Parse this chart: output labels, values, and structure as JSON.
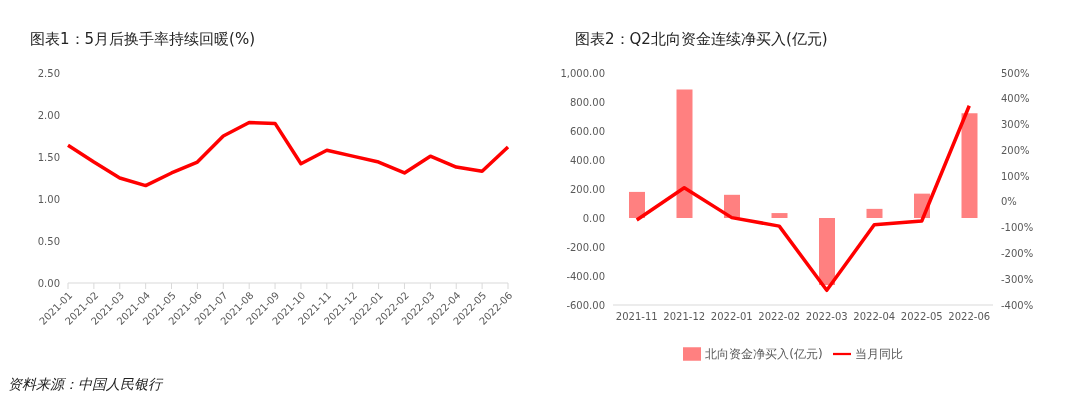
{
  "chart_data": [
    {
      "type": "line",
      "title": "图表1：5月后换手率持续回暖(%)",
      "categories": [
        "2021-01",
        "2021-02",
        "2021-03",
        "2021-04",
        "2021-05",
        "2021-06",
        "2021-07",
        "2021-08",
        "2021-09",
        "2021-10",
        "2021-11",
        "2021-12",
        "2022-01",
        "2022-02",
        "2022-03",
        "2022-04",
        "2022-05",
        "2022-06"
      ],
      "series": [
        {
          "color": "#ff0000",
          "values": [
            1.64,
            1.44,
            1.25,
            1.16,
            1.31,
            1.44,
            1.75,
            1.91,
            1.9,
            1.42,
            1.58,
            1.51,
            1.44,
            1.31,
            1.51,
            1.38,
            1.33,
            1.62
          ]
        }
      ],
      "ylim": [
        0,
        2.5
      ],
      "yticks": [
        {
          "value": 0,
          "label": "0.00"
        },
        {
          "value": 0.5,
          "label": "0.50"
        },
        {
          "value": 1,
          "label": "1.00"
        },
        {
          "value": 1.5,
          "label": "1.50"
        },
        {
          "value": 2,
          "label": "2.00"
        },
        {
          "value": 2.5,
          "label": "2.50"
        }
      ],
      "grid": false,
      "legend": false,
      "marker": "none",
      "line_style": "solid",
      "annotations": [
        "资料来源：中国人民银行"
      ]
    },
    {
      "type": "bar",
      "title": "图表2：Q2北向资金连续净买入(亿元)",
      "categories": [
        "2021-11",
        "2021-12",
        "2022-01",
        "2022-02",
        "2022-03",
        "2022-04",
        "2022-05",
        "2022-06"
      ],
      "series": [
        {
          "name": "北向资金净买入(亿元)",
          "color": "#ff8080",
          "values": [
            180,
            886,
            160,
            34,
            -462,
            63,
            168,
            722
          ]
        },
        {
          "name": "当月同比",
          "type": "line",
          "axis": "y2",
          "color": "#ff0000",
          "values": [
            -70,
            55,
            -61,
            -94,
            -343,
            -89,
            -74,
            373
          ]
        }
      ],
      "ylim": [
        -600,
        1000
      ],
      "yticks": [
        {
          "value": -600,
          "label": "-600.00"
        },
        {
          "value": -400,
          "label": "-400.00"
        },
        {
          "value": -200,
          "label": "-200.00"
        },
        {
          "value": 0,
          "label": "0.00"
        },
        {
          "value": 200,
          "label": "200.00"
        },
        {
          "value": 400,
          "label": "400.00"
        },
        {
          "value": 600,
          "label": "600.00"
        },
        {
          "value": 800,
          "label": "800.00"
        },
        {
          "value": 1000,
          "label": "1,000.00"
        }
      ],
      "y2lim": [
        -400,
        500
      ],
      "y2ticks": [
        {
          "value": -400,
          "label": "-400%"
        },
        {
          "value": -300,
          "label": "-300%"
        },
        {
          "value": -200,
          "label": "-200%"
        },
        {
          "value": -100,
          "label": "-100%"
        },
        {
          "value": 0,
          "label": "0%"
        },
        {
          "value": 100,
          "label": "100%"
        },
        {
          "value": 200,
          "label": "200%"
        },
        {
          "value": 300,
          "label": "300%"
        },
        {
          "value": 400,
          "label": "400%"
        },
        {
          "value": 500,
          "label": "500%"
        }
      ],
      "grid": false,
      "legend": "bottom",
      "marker": "none",
      "line_style": "solid"
    }
  ]
}
